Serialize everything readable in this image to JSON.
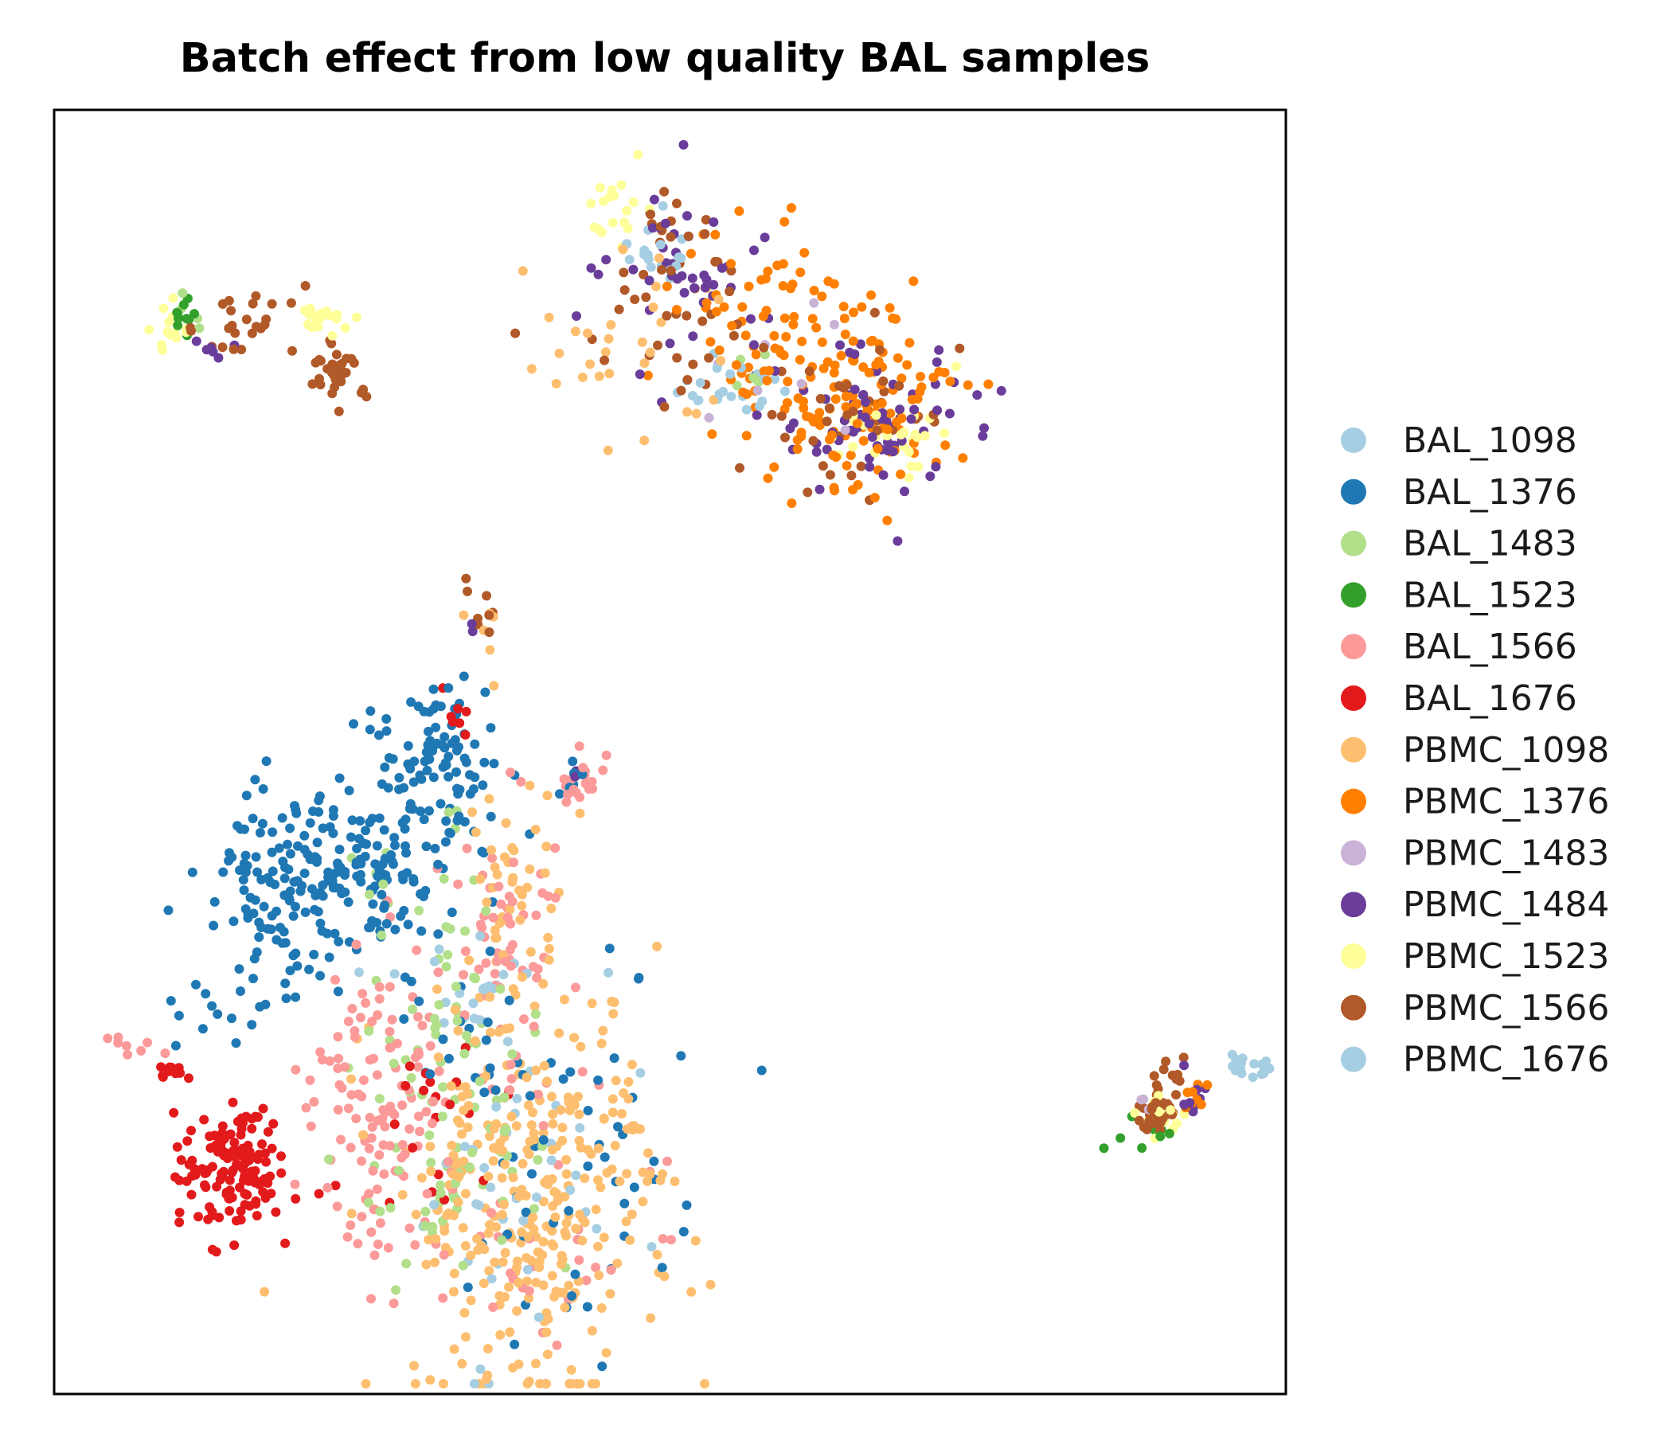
{
  "chart_data": {
    "type": "scatter",
    "title": "Batch effect from low quality BAL samples",
    "xlabel": "",
    "ylabel": "",
    "xlim": [
      0,
      100
    ],
    "ylim": [
      0,
      100
    ],
    "axis_ticks": false,
    "grid": false,
    "legend_placement": "right",
    "series": [
      {
        "name": "BAL_1098",
        "color": "#a6cee3",
        "clusters": [
          {
            "cx": 49.2,
            "cy": 89.2,
            "sx": 1.4,
            "sy": 1.4,
            "n": 18
          },
          {
            "cx": 55.3,
            "cy": 78.5,
            "sx": 2.2,
            "sy": 1.5,
            "n": 10
          },
          {
            "cx": 33.5,
            "cy": 32.0,
            "sx": 2.5,
            "sy": 2.0,
            "n": 22
          },
          {
            "cx": 38.5,
            "cy": 15.0,
            "sx": 5.0,
            "sy": 7.0,
            "n": 20
          },
          {
            "cx": 98.0,
            "cy": 25.5,
            "sx": 0.8,
            "sy": 0.5,
            "n": 5
          }
        ]
      },
      {
        "name": "BAL_1376",
        "color": "#1f78b4",
        "clusters": [
          {
            "cx": 22.5,
            "cy": 40.5,
            "sx": 5.0,
            "sy": 4.0,
            "n": 230
          },
          {
            "cx": 31.5,
            "cy": 49.5,
            "sx": 2.5,
            "sy": 3.5,
            "n": 90
          },
          {
            "cx": 32.5,
            "cy": 27.0,
            "sx": 2.5,
            "sy": 1.5,
            "n": 12
          },
          {
            "cx": 14.0,
            "cy": 30.5,
            "sx": 3.0,
            "sy": 2.0,
            "n": 18
          },
          {
            "cx": 43.0,
            "cy": 17.0,
            "sx": 5.0,
            "sy": 8.0,
            "n": 55
          },
          {
            "cx": 42.0,
            "cy": 47.5,
            "sx": 0.8,
            "sy": 1.0,
            "n": 6
          }
        ]
      },
      {
        "name": "BAL_1483",
        "color": "#b2df8a",
        "clusters": [
          {
            "cx": 33.0,
            "cy": 20.0,
            "sx": 4.0,
            "sy": 6.5,
            "n": 80
          },
          {
            "cx": 31.0,
            "cy": 36.0,
            "sx": 3.0,
            "sy": 7.0,
            "n": 30
          },
          {
            "cx": 11.0,
            "cy": 84.0,
            "sx": 1.0,
            "sy": 1.0,
            "n": 5
          },
          {
            "cx": 56.0,
            "cy": 80.0,
            "sx": 1.5,
            "sy": 1.2,
            "n": 6
          }
        ]
      },
      {
        "name": "BAL_1523",
        "color": "#33a02c",
        "clusters": [
          {
            "cx": 10.8,
            "cy": 83.8,
            "sx": 0.8,
            "sy": 1.0,
            "n": 10
          },
          {
            "cx": 88.5,
            "cy": 20.2,
            "sx": 1.0,
            "sy": 1.2,
            "n": 8
          }
        ]
      },
      {
        "name": "BAL_1566",
        "color": "#fb9a99",
        "clusters": [
          {
            "cx": 26.0,
            "cy": 21.5,
            "sx": 2.8,
            "sy": 6.0,
            "n": 120
          },
          {
            "cx": 36.5,
            "cy": 35.0,
            "sx": 2.0,
            "sy": 5.0,
            "n": 55
          },
          {
            "cx": 42.5,
            "cy": 47.5,
            "sx": 0.8,
            "sy": 1.2,
            "n": 20
          },
          {
            "cx": 7.0,
            "cy": 27.0,
            "sx": 1.5,
            "sy": 0.7,
            "n": 8
          },
          {
            "cx": 39.0,
            "cy": 16.0,
            "sx": 5.0,
            "sy": 7.5,
            "n": 50
          }
        ]
      },
      {
        "name": "BAL_1676",
        "color": "#e31a1c",
        "clusters": [
          {
            "cx": 14.8,
            "cy": 17.5,
            "sx": 2.3,
            "sy": 2.6,
            "n": 140
          },
          {
            "cx": 9.5,
            "cy": 25.5,
            "sx": 1.0,
            "sy": 0.5,
            "n": 10
          },
          {
            "cx": 31.5,
            "cy": 22.0,
            "sx": 2.5,
            "sy": 3.5,
            "n": 20
          },
          {
            "cx": 32.7,
            "cy": 53.0,
            "sx": 0.7,
            "sy": 1.3,
            "n": 8
          }
        ]
      },
      {
        "name": "PBMC_1098",
        "color": "#fdbf6f",
        "clusters": [
          {
            "cx": 39.0,
            "cy": 15.0,
            "sx": 5.3,
            "sy": 8.0,
            "n": 320
          },
          {
            "cx": 37.5,
            "cy": 37.0,
            "sx": 2.0,
            "sy": 5.5,
            "n": 50
          },
          {
            "cx": 46.0,
            "cy": 82.0,
            "sx": 5.0,
            "sy": 5.5,
            "n": 30
          },
          {
            "cx": 35.0,
            "cy": 59.0,
            "sx": 1.0,
            "sy": 2.5,
            "n": 6
          }
        ]
      },
      {
        "name": "PBMC_1376",
        "color": "#ff7f00",
        "clusters": [
          {
            "cx": 57.0,
            "cy": 84.0,
            "sx": 4.0,
            "sy": 4.0,
            "n": 60
          },
          {
            "cx": 65.5,
            "cy": 77.5,
            "sx": 4.0,
            "sy": 3.5,
            "n": 130
          },
          {
            "cx": 93.0,
            "cy": 24.0,
            "sx": 0.8,
            "sy": 1.0,
            "n": 8
          }
        ]
      },
      {
        "name": "PBMC_1483",
        "color": "#cab2d6",
        "clusters": [
          {
            "cx": 60.0,
            "cy": 81.0,
            "sx": 3.0,
            "sy": 3.0,
            "n": 8
          },
          {
            "cx": 88.8,
            "cy": 22.5,
            "sx": 0.6,
            "sy": 1.0,
            "n": 4
          }
        ]
      },
      {
        "name": "PBMC_1484",
        "color": "#6a3d9a",
        "clusters": [
          {
            "cx": 51.5,
            "cy": 87.5,
            "sx": 3.0,
            "sy": 3.5,
            "n": 45
          },
          {
            "cx": 66.0,
            "cy": 76.5,
            "sx": 4.0,
            "sy": 3.0,
            "n": 70
          },
          {
            "cx": 13.0,
            "cy": 81.5,
            "sx": 0.8,
            "sy": 0.4,
            "n": 6
          },
          {
            "cx": 92.5,
            "cy": 23.0,
            "sx": 0.8,
            "sy": 1.2,
            "n": 10
          },
          {
            "cx": 42.5,
            "cy": 49.0,
            "sx": 0.3,
            "sy": 0.5,
            "n": 3
          },
          {
            "cx": 33.8,
            "cy": 60.0,
            "sx": 0.3,
            "sy": 0.4,
            "n": 2
          }
        ]
      },
      {
        "name": "PBMC_1523",
        "color": "#ffff99",
        "clusters": [
          {
            "cx": 9.5,
            "cy": 83.5,
            "sx": 0.8,
            "sy": 1.0,
            "n": 14
          },
          {
            "cx": 21.5,
            "cy": 83.8,
            "sx": 1.0,
            "sy": 0.6,
            "n": 22
          },
          {
            "cx": 45.5,
            "cy": 92.5,
            "sx": 1.0,
            "sy": 1.5,
            "n": 18
          },
          {
            "cx": 68.5,
            "cy": 74.5,
            "sx": 2.5,
            "sy": 2.0,
            "n": 28
          },
          {
            "cx": 90.0,
            "cy": 21.5,
            "sx": 1.0,
            "sy": 0.8,
            "n": 15
          }
        ]
      },
      {
        "name": "PBMC_1566",
        "color": "#b15928",
        "clusters": [
          {
            "cx": 15.5,
            "cy": 83.0,
            "sx": 2.5,
            "sy": 1.2,
            "n": 25
          },
          {
            "cx": 23.0,
            "cy": 79.5,
            "sx": 1.0,
            "sy": 1.2,
            "n": 35
          },
          {
            "cx": 51.0,
            "cy": 86.5,
            "sx": 3.5,
            "sy": 4.0,
            "n": 45
          },
          {
            "cx": 64.0,
            "cy": 76.0,
            "sx": 4.0,
            "sy": 3.5,
            "n": 40
          },
          {
            "cx": 89.8,
            "cy": 23.0,
            "sx": 1.0,
            "sy": 1.8,
            "n": 40
          },
          {
            "cx": 34.5,
            "cy": 61.0,
            "sx": 0.8,
            "sy": 1.5,
            "n": 8
          }
        ]
      },
      {
        "name": "PBMC_1676",
        "color": "#a6cee3",
        "clusters": [
          {
            "cx": 96.5,
            "cy": 25.5,
            "sx": 1.3,
            "sy": 0.5,
            "n": 12
          },
          {
            "cx": 54.0,
            "cy": 78.0,
            "sx": 2.5,
            "sy": 1.5,
            "n": 12
          },
          {
            "cx": 35.5,
            "cy": 17.0,
            "sx": 4.0,
            "sy": 6.0,
            "n": 20
          }
        ]
      }
    ]
  }
}
